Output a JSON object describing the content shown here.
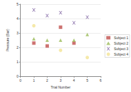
{
  "chart_data": {
    "type": "scatter",
    "x_label": "Trial Number",
    "y_label": "Pressure (Bar)",
    "xlim": [
      0,
      6
    ],
    "xticks": [
      0,
      1,
      2,
      3,
      4,
      5,
      6
    ],
    "ylim": [
      0,
      5
    ],
    "yticks": [
      0,
      1,
      2,
      3,
      4,
      5
    ],
    "grid": true,
    "legend": "right",
    "series": [
      {
        "name": "Subject 1",
        "color": "#c0504d",
        "marker": "square",
        "x": [
          1,
          2,
          3,
          4
        ],
        "values": [
          2.3,
          2.1,
          3.4,
          2.3
        ]
      },
      {
        "name": "Subject 2",
        "color": "#9bbb59",
        "marker": "triangle",
        "x": [
          1,
          2,
          3,
          4,
          5
        ],
        "values": [
          2.6,
          2.5,
          2.5,
          2.5,
          2.9
        ]
      },
      {
        "name": "Subject 3",
        "color": "#8064a2",
        "marker": "x",
        "x": [
          1,
          2,
          3,
          4,
          5
        ],
        "values": [
          4.6,
          4.2,
          4.4,
          3.7,
          4.1
        ]
      },
      {
        "name": "Subject 4",
        "color": "#f2e394",
        "marker": "circle",
        "x": [
          1,
          3,
          5
        ],
        "values": [
          3.5,
          1.8,
          1.3
        ]
      }
    ]
  }
}
